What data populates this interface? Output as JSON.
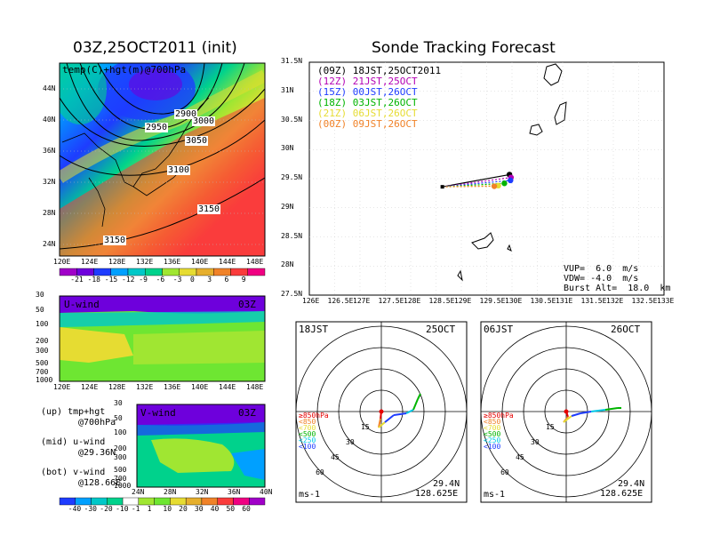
{
  "left_title": "03Z,25OCT2011 (init)",
  "right_title": "Sonde Tracking Forecast",
  "map700": {
    "label": "temp(C)+hgt(m)@700hPa",
    "lon_ticks": [
      "120E",
      "124E",
      "128E",
      "132E",
      "136E",
      "140E",
      "144E",
      "148E"
    ],
    "lat_ticks": [
      "44N",
      "40N",
      "36N",
      "32N",
      "28N",
      "24N"
    ],
    "contour_labels": [
      "2900",
      "2950",
      "3000",
      "3050",
      "3100",
      "3150",
      "3150"
    ],
    "colorbar_ticks": [
      "-21",
      "-18",
      "-15",
      "-12",
      "-9",
      "-6",
      "-3",
      "0",
      "3",
      "6",
      "9"
    ],
    "colorbar_colors": [
      "#a000c8",
      "#6e00dc",
      "#1e3cff",
      "#00a0ff",
      "#00c8c8",
      "#00d28c",
      "#a0e632",
      "#e6dc32",
      "#e6af2d",
      "#f08228",
      "#fa3c3c",
      "#f00082"
    ]
  },
  "uwind": {
    "label": "U-wind",
    "time": "03Z",
    "p_ticks": [
      "30",
      "50",
      "100",
      "200",
      "300",
      "500",
      "700",
      "1000"
    ],
    "lon_ticks": [
      "120E",
      "124E",
      "128E",
      "132E",
      "136E",
      "140E",
      "144E",
      "148E"
    ]
  },
  "vwind": {
    "label": "V-wind",
    "time": "03Z",
    "p_ticks": [
      "30",
      "50",
      "100",
      "200",
      "300",
      "500",
      "700",
      "1000"
    ],
    "lat_ticks": [
      "24N",
      "28N",
      "32N",
      "36N",
      "40N"
    ]
  },
  "wind_colorbar": {
    "ticks": [
      "-40",
      "-30",
      "-20",
      "-10",
      "-1",
      "1",
      "10",
      "20",
      "30",
      "40",
      "50",
      "60"
    ],
    "colors": [
      "#1e3cff",
      "#00a0ff",
      "#00c8c8",
      "#00d28c",
      "#ffffff",
      "#a0e632",
      "#6ee632",
      "#e6dc32",
      "#e6af2d",
      "#f08228",
      "#fa3c3c",
      "#f00082",
      "#a000c8"
    ]
  },
  "notes": [
    {
      "head": "(up)",
      "l1": "tmp+hgt",
      "l2": "@700hPa"
    },
    {
      "head": "(mid)",
      "l1": "u-wind",
      "l2": "@29.36N"
    },
    {
      "head": "(bot)",
      "l1": "v-wind",
      "l2": "@128.66E"
    }
  ],
  "track": {
    "legend": [
      {
        "code": "(09Z)",
        "text": "18JST,25OCT2011",
        "color": "#000000"
      },
      {
        "code": "(12Z)",
        "text": "21JST,25OCT",
        "color": "#b400b4"
      },
      {
        "code": "(15Z)",
        "text": "00JST,26OCT",
        "color": "#1e3cff"
      },
      {
        "code": "(18Z)",
        "text": "03JST,26OCT",
        "color": "#00b400"
      },
      {
        "code": "(21Z)",
        "text": "06JST,26OCT",
        "color": "#e6dc32"
      },
      {
        "code": "(00Z)",
        "text": "09JST,26OCT",
        "color": "#f08228"
      }
    ],
    "lon_ticks": [
      "126E",
      "126.5E",
      "127E",
      "127.5E",
      "128E",
      "128.5E",
      "129E",
      "129.5E",
      "130E",
      "130.5E",
      "131E",
      "131.5E",
      "132E",
      "132.5E",
      "133E"
    ],
    "lat_ticks": [
      "31.5N",
      "31N",
      "30.5N",
      "30N",
      "29.5N",
      "29N",
      "28.5N",
      "28N",
      "27.5N"
    ],
    "params": {
      "vup": "VUP=  6.0  m/s",
      "vdw": "VDW= -4.0  m/s",
      "burst": "Burst Alt=  18.0  km"
    }
  },
  "chart_data": [
    {
      "type": "scatter",
      "title": "Sonde Tracking Forecast",
      "xlim": [
        126,
        133
      ],
      "ylim": [
        27.5,
        31.5
      ],
      "launch": {
        "lon": 128.625,
        "lat": 29.36
      },
      "series": [
        {
          "name": "18JST,25OCT2011",
          "x": [
            129.95
          ],
          "y": [
            29.57
          ]
        },
        {
          "name": "21JST,25OCT",
          "x": [
            129.98
          ],
          "y": [
            29.52
          ]
        },
        {
          "name": "00JST,26OCT",
          "x": [
            129.97
          ],
          "y": [
            29.47
          ]
        },
        {
          "name": "03JST,26OCT",
          "x": [
            129.85
          ],
          "y": [
            29.42
          ]
        },
        {
          "name": "06JST,26OCT",
          "x": [
            129.73
          ],
          "y": [
            29.38
          ]
        },
        {
          "name": "09JST,26OCT",
          "x": [
            129.65
          ],
          "y": [
            29.37
          ]
        }
      ]
    }
  ],
  "hodo": [
    {
      "left_label": "18JST",
      "right_label": "25OCT",
      "ring_labels": [
        "15",
        "30",
        "45",
        "60"
      ],
      "unit": "ms-1",
      "lat": "29.4N",
      "lon": "128.625E",
      "levels": [
        {
          "label": "≥850hPa",
          "color": "#e60000"
        },
        {
          "label": "<850",
          "color": "#f08228"
        },
        {
          "label": "<700",
          "color": "#e6dc32"
        },
        {
          "label": "<500",
          "color": "#00b400"
        },
        {
          "label": "<250",
          "color": "#00c8e6"
        },
        {
          "label": "<100",
          "color": "#1e3cff"
        }
      ]
    },
    {
      "left_label": "06JST",
      "right_label": "26OCT",
      "ring_labels": [
        "15",
        "30",
        "45",
        "60"
      ],
      "unit": "ms-1",
      "lat": "29.4N",
      "lon": "128.625E",
      "levels": [
        {
          "label": "≥850hPa",
          "color": "#e60000"
        },
        {
          "label": "<850",
          "color": "#f08228"
        },
        {
          "label": "<700",
          "color": "#e6dc32"
        },
        {
          "label": "<500",
          "color": "#00b400"
        },
        {
          "label": "<250",
          "color": "#00c8e6"
        },
        {
          "label": "<100",
          "color": "#1e3cff"
        }
      ]
    }
  ]
}
